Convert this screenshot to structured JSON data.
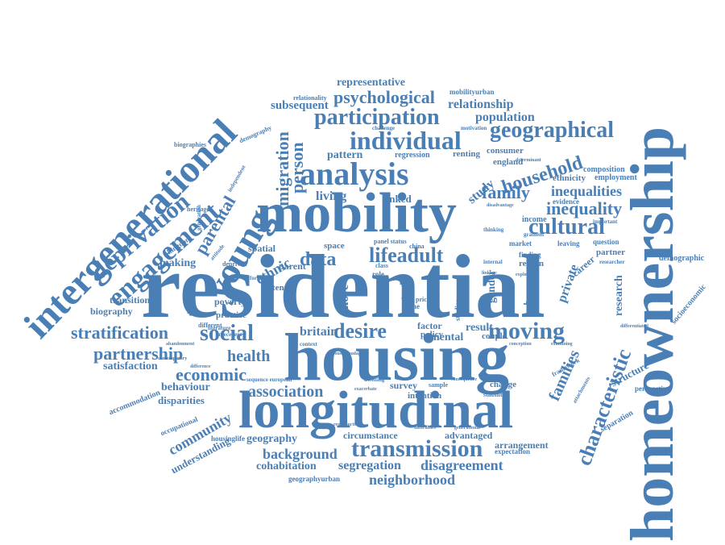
{
  "color": "#4a7fb5",
  "words": [
    {
      "text": "residential",
      "weight": 100,
      "orientation": "horizontal"
    },
    {
      "text": "housing",
      "weight": 80,
      "orientation": "horizontal"
    },
    {
      "text": "longitudinal",
      "weight": 72,
      "orientation": "horizontal"
    },
    {
      "text": "mobility",
      "weight": 76,
      "orientation": "horizontal"
    },
    {
      "text": "homeownership",
      "weight": 82,
      "orientation": "vertical"
    },
    {
      "text": "intergenerational",
      "weight": 60,
      "orientation": "diagonal"
    },
    {
      "text": "young",
      "weight": 52,
      "orientation": "diagonal"
    },
    {
      "text": "engagement",
      "weight": 44,
      "orientation": "diagonal"
    },
    {
      "text": "analysis",
      "weight": 44,
      "orientation": "horizontal"
    },
    {
      "text": "deprivation",
      "weight": 36,
      "orientation": "diagonal"
    },
    {
      "text": "transmission",
      "weight": 32,
      "orientation": "horizontal"
    },
    {
      "text": "individual",
      "weight": 30,
      "orientation": "horizontal"
    },
    {
      "text": "participation",
      "weight": 30,
      "orientation": "horizontal"
    },
    {
      "text": "geographical",
      "weight": 28,
      "orientation": "horizontal"
    },
    {
      "text": "characteristic",
      "weight": 28,
      "orientation": "vertical"
    },
    {
      "text": "moving",
      "weight": 28,
      "orientation": "horizontal"
    },
    {
      "text": "social",
      "weight": 26,
      "orientation": "horizontal"
    },
    {
      "text": "cultural",
      "weight": 26,
      "orientation": "horizontal"
    },
    {
      "text": "lifeadult",
      "weight": 24,
      "orientation": "horizontal"
    },
    {
      "text": "household",
      "weight": 24,
      "orientation": "diagonal"
    },
    {
      "text": "desire",
      "weight": 24,
      "orientation": "horizontal"
    },
    {
      "text": "data",
      "weight": 24,
      "orientation": "horizontal"
    },
    {
      "text": "parental",
      "weight": 22,
      "orientation": "diagonal"
    },
    {
      "text": "migration",
      "weight": 22,
      "orientation": "vertical"
    },
    {
      "text": "person",
      "weight": 22,
      "orientation": "vertical"
    },
    {
      "text": "psychological",
      "weight": 20,
      "orientation": "horizontal"
    },
    {
      "text": "stratification",
      "weight": 20,
      "orientation": "horizontal"
    },
    {
      "text": "inequality",
      "weight": 20,
      "orientation": "horizontal"
    },
    {
      "text": "family",
      "weight": 20,
      "orientation": "horizontal"
    },
    {
      "text": "partnership",
      "weight": 20,
      "orientation": "horizontal"
    },
    {
      "text": "economic",
      "weight": 20,
      "orientation": "horizontal"
    },
    {
      "text": "association",
      "weight": 20,
      "orientation": "horizontal"
    },
    {
      "text": "families",
      "weight": 20,
      "orientation": "vertical"
    },
    {
      "text": "disagreement",
      "weight": 18,
      "orientation": "horizontal"
    },
    {
      "text": "neighborhood",
      "weight": 18,
      "orientation": "horizontal"
    },
    {
      "text": "background",
      "weight": 18,
      "orientation": "horizontal"
    },
    {
      "text": "community",
      "weight": 18,
      "orientation": "diagonal"
    },
    {
      "text": "health",
      "weight": 18,
      "orientation": "horizontal"
    },
    {
      "text": "inequalities",
      "weight": 18,
      "orientation": "horizontal"
    },
    {
      "text": "ethnic",
      "weight": 18,
      "orientation": "diagonal"
    },
    {
      "text": "relationship",
      "weight": 16,
      "orientation": "horizontal"
    },
    {
      "text": "population",
      "weight": 16,
      "orientation": "horizontal"
    },
    {
      "text": "subsequent",
      "weight": 16,
      "orientation": "horizontal"
    },
    {
      "text": "segregation",
      "weight": 16,
      "orientation": "horizontal"
    },
    {
      "text": "cohabitation",
      "weight": 14,
      "orientation": "horizontal"
    },
    {
      "text": "geography",
      "weight": 14,
      "orientation": "horizontal"
    },
    {
      "text": "representative",
      "weight": 14,
      "orientation": "horizontal"
    },
    {
      "text": "living",
      "weight": 16,
      "orientation": "horizontal"
    },
    {
      "text": "britain",
      "weight": 16,
      "orientation": "horizontal"
    },
    {
      "text": "result",
      "weight": 14,
      "orientation": "horizontal"
    },
    {
      "text": "satisfaction",
      "weight": 14,
      "orientation": "horizontal"
    },
    {
      "text": "behaviour",
      "weight": 14,
      "orientation": "horizontal"
    },
    {
      "text": "disparities",
      "weight": 13,
      "orientation": "horizontal"
    },
    {
      "text": "understanding",
      "weight": 13,
      "orientation": "diagonal"
    },
    {
      "text": "private",
      "weight": 16,
      "orientation": "vertical"
    },
    {
      "text": "study",
      "weight": 16,
      "orientation": "diagonal"
    },
    {
      "text": "research",
      "weight": 14,
      "orientation": "vertical"
    },
    {
      "text": "structure",
      "weight": 14,
      "orientation": "diagonal"
    },
    {
      "text": "circumstance",
      "weight": 12,
      "orientation": "horizontal"
    },
    {
      "text": "advantaged",
      "weight": 12,
      "orientation": "horizontal"
    },
    {
      "text": "arrangement",
      "weight": 12,
      "orientation": "horizontal"
    },
    {
      "text": "pattern",
      "weight": 14,
      "orientation": "horizontal"
    },
    {
      "text": "making",
      "weight": 14,
      "orientation": "horizontal"
    },
    {
      "text": "transition",
      "weight": 12,
      "orientation": "horizontal"
    },
    {
      "text": "biography",
      "weight": 12,
      "orientation": "horizontal"
    },
    {
      "text": "poverty",
      "weight": 12,
      "orientation": "horizontal"
    },
    {
      "text": "practice",
      "weight": 12,
      "orientation": "horizontal"
    },
    {
      "text": "parent",
      "weight": 12,
      "orientation": "horizontal"
    },
    {
      "text": "spatial",
      "weight": 12,
      "orientation": "horizontal"
    },
    {
      "text": "tenure",
      "weight": 11,
      "orientation": "horizontal"
    },
    {
      "text": "more",
      "weight": 16,
      "orientation": "vertical"
    },
    {
      "text": "gender",
      "weight": 14,
      "orientation": "vertical"
    },
    {
      "text": "house",
      "weight": 12,
      "orientation": "vertical"
    },
    {
      "text": "mental",
      "weight": 14,
      "orientation": "horizontal"
    },
    {
      "text": "factor",
      "weight": 12,
      "orientation": "horizontal"
    },
    {
      "text": "survey",
      "weight": 12,
      "orientation": "horizontal"
    },
    {
      "text": "intention",
      "weight": 11,
      "orientation": "horizontal"
    },
    {
      "text": "policy",
      "weight": 11,
      "orientation": "horizontal"
    },
    {
      "text": "couple",
      "weight": 11,
      "orientation": "horizontal"
    },
    {
      "text": "change",
      "weight": 11,
      "orientation": "horizontal"
    },
    {
      "text": "linked",
      "weight": 13,
      "orientation": "horizontal"
    },
    {
      "text": "space",
      "weight": 11,
      "orientation": "horizontal"
    },
    {
      "text": "reason",
      "weight": 11,
      "orientation": "horizontal"
    },
    {
      "text": "partner",
      "weight": 11,
      "orientation": "horizontal"
    },
    {
      "text": "demographic",
      "weight": 10,
      "orientation": "horizontal"
    },
    {
      "text": "socioeconomic",
      "weight": 10,
      "orientation": "diagonal"
    },
    {
      "text": "perspective",
      "weight": 9,
      "orientation": "horizontal"
    },
    {
      "text": "separation",
      "weight": 10,
      "orientation": "diagonal"
    },
    {
      "text": "composition",
      "weight": 10,
      "orientation": "horizontal"
    },
    {
      "text": "employment",
      "weight": 10,
      "orientation": "horizontal"
    },
    {
      "text": "ethnicity",
      "weight": 11,
      "orientation": "horizontal"
    },
    {
      "text": "consumer",
      "weight": 11,
      "orientation": "horizontal"
    },
    {
      "text": "england",
      "weight": 11,
      "orientation": "horizontal"
    },
    {
      "text": "renting",
      "weight": 11,
      "orientation": "horizontal"
    },
    {
      "text": "regression",
      "weight": 10,
      "orientation": "horizontal"
    },
    {
      "text": "income",
      "weight": 10,
      "orientation": "horizontal"
    },
    {
      "text": "evidence",
      "weight": 9,
      "orientation": "horizontal"
    },
    {
      "text": "question",
      "weight": 9,
      "orientation": "horizontal"
    },
    {
      "text": "leaving",
      "weight": 9,
      "orientation": "horizontal"
    },
    {
      "text": "market",
      "weight": 9,
      "orientation": "horizontal"
    },
    {
      "text": "finding",
      "weight": 9,
      "orientation": "horizontal"
    },
    {
      "text": "career",
      "weight": 12,
      "orientation": "diagonal"
    },
    {
      "text": "accommodation",
      "weight": 10,
      "orientation": "diagonal"
    },
    {
      "text": "occupational",
      "weight": 9,
      "orientation": "diagonal"
    },
    {
      "text": "housinglife",
      "weight": 9,
      "orientation": "horizontal"
    },
    {
      "text": "geographyurban",
      "weight": 9,
      "orientation": "horizontal"
    },
    {
      "text": "expectation",
      "weight": 9,
      "orientation": "horizontal"
    },
    {
      "text": "stability",
      "weight": 8,
      "orientation": "horizontal"
    },
    {
      "text": "mobilityurban",
      "weight": 9,
      "orientation": "horizontal"
    },
    {
      "text": "relationality",
      "weight": 8,
      "orientation": "horizontal"
    },
    {
      "text": "demography",
      "weight": 8,
      "orientation": "horizontal"
    },
    {
      "text": "biographies",
      "weight": 8,
      "orientation": "horizontal"
    },
    {
      "text": "kingdom",
      "weight": 9,
      "orientation": "diagonal"
    },
    {
      "text": "heritage",
      "weight": 8,
      "orientation": "horizontal"
    },
    {
      "text": "decision",
      "weight": 9,
      "orientation": "vertical"
    },
    {
      "text": "different",
      "weight": 8,
      "orientation": "horizontal"
    },
    {
      "text": "deprived",
      "weight": 8,
      "orientation": "horizontal"
    },
    {
      "text": "framework",
      "weight": 8,
      "orientation": "diagonal"
    },
    {
      "text": "attachments",
      "weight": 7,
      "orientation": "diagonal"
    },
    {
      "text": "challenge",
      "weight": 7,
      "orientation": "horizontal"
    },
    {
      "text": "motivation",
      "weight": 7,
      "orientation": "horizontal"
    },
    {
      "text": "independent",
      "weight": 7,
      "orientation": "diagonal"
    },
    {
      "text": "generation",
      "weight": 7,
      "orientation": "vertical"
    },
    {
      "text": "role",
      "weight": 9,
      "orientation": "horizontal"
    },
    {
      "text": "live",
      "weight": 9,
      "orientation": "horizontal"
    },
    {
      "text": "time",
      "weight": 9,
      "orientation": "horizontal"
    },
    {
      "text": "great",
      "weight": 9,
      "orientation": "horizontal"
    },
    {
      "text": "art",
      "weight": 9,
      "orientation": "horizontal"
    },
    {
      "text": "price",
      "weight": 8,
      "orientation": "horizontal"
    },
    {
      "text": "sample",
      "weight": 8,
      "orientation": "horizontal"
    },
    {
      "text": "dwelling",
      "weight": 7,
      "orientation": "horizontal"
    },
    {
      "text": "china",
      "weight": 8,
      "orientation": "horizontal"
    },
    {
      "text": "panel status",
      "weight": 8,
      "orientation": "horizontal"
    },
    {
      "text": "class",
      "weight": 8,
      "orientation": "horizontal"
    },
    {
      "text": "studies",
      "weight": 9,
      "orientation": "vertical"
    },
    {
      "text": "gradient",
      "weight": 7,
      "orientation": "horizontal"
    },
    {
      "text": "attitude",
      "weight": 7,
      "orientation": "diagonal"
    },
    {
      "text": "formation",
      "weight": 7,
      "orientation": "horizontal"
    },
    {
      "text": "antecedent",
      "weight": 7,
      "orientation": "horizontal"
    },
    {
      "text": "abandonment",
      "weight": 6,
      "orientation": "horizontal"
    },
    {
      "text": "literature",
      "weight": 7,
      "orientation": "horizontal"
    },
    {
      "text": "difference",
      "weight": 6,
      "orientation": "horizontal"
    },
    {
      "text": "context",
      "weight": 7,
      "orientation": "horizontal"
    },
    {
      "text": "sequence european",
      "weight": 7,
      "orientation": "horizontal"
    },
    {
      "text": "exacerbate",
      "weight": 6,
      "orientation": "horizontal"
    },
    {
      "text": "consequence",
      "weight": 6,
      "orientation": "horizontal"
    },
    {
      "text": "difficulties",
      "weight": 6,
      "orientation": "horizontal"
    },
    {
      "text": "generational",
      "weight": 6,
      "orientation": "horizontal"
    },
    {
      "text": "reproduction",
      "weight": 6,
      "orientation": "horizontal"
    },
    {
      "text": "internal",
      "weight": 7,
      "orientation": "horizontal"
    },
    {
      "text": "thinking",
      "weight": 7,
      "orientation": "horizontal"
    },
    {
      "text": "researcher",
      "weight": 7,
      "orientation": "horizontal"
    },
    {
      "text": "important",
      "weight": 7,
      "orientation": "horizontal"
    },
    {
      "text": "differentiated",
      "weight": 6,
      "orientation": "horizontal"
    },
    {
      "text": "determinant",
      "weight": 6,
      "orientation": "horizontal"
    },
    {
      "text": "disadvantage",
      "weight": 6,
      "orientation": "horizontal"
    },
    {
      "text": "exploring",
      "weight": 6,
      "orientation": "horizontal"
    },
    {
      "text": "linkage",
      "weight": 6,
      "orientation": "horizontal"
    },
    {
      "text": "conception",
      "weight": 6,
      "orientation": "horizontal"
    },
    {
      "text": "examining",
      "weight": 6,
      "orientation": "horizontal"
    },
    {
      "text": "contemporary",
      "weight": 6,
      "orientation": "horizontal"
    },
    {
      "text": "housingbudapest",
      "weight": 6,
      "orientation": "horizontal"
    }
  ]
}
